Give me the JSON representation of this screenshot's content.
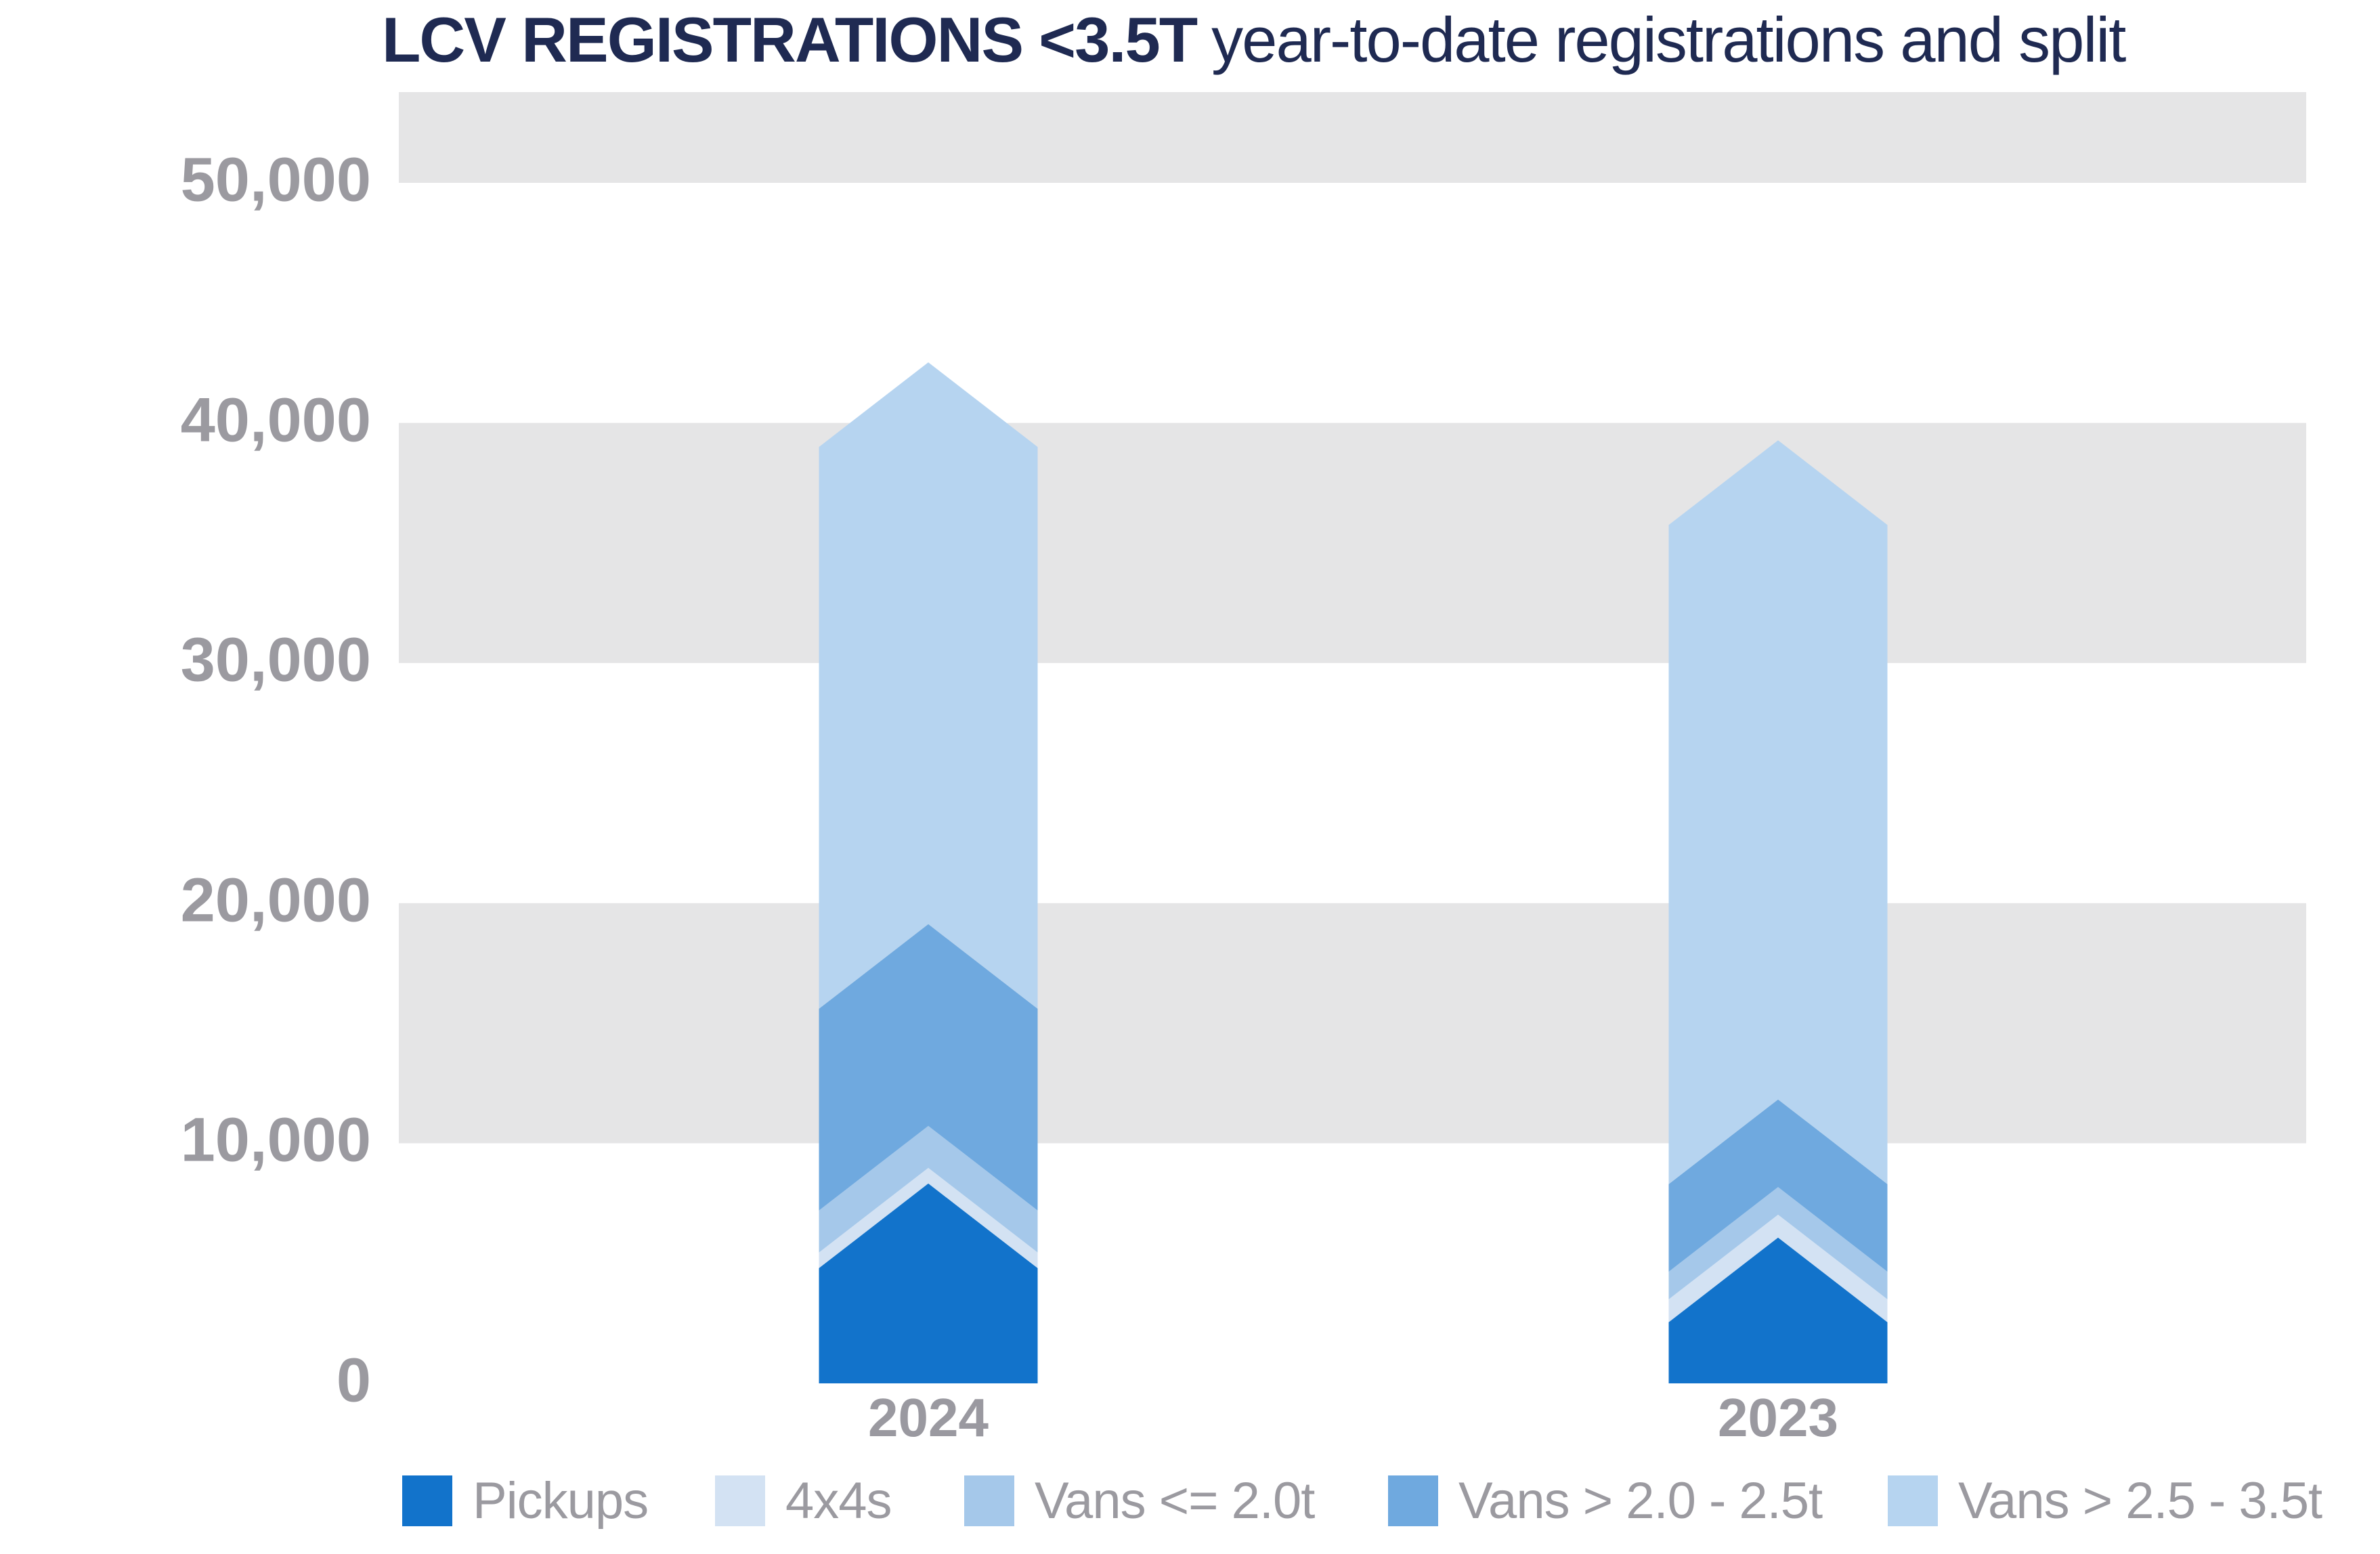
{
  "chart_data": {
    "type": "bar",
    "subtype": "stacked-column-chevron-arrows",
    "title_bold": "LCV REGISTRATIONS <3.5T",
    "title_regular": "year-to-date registrations and split",
    "categories": [
      "2024",
      "2023"
    ],
    "series": [
      {
        "name": "Pickups",
        "color": "#1273CB",
        "values": [
          4800,
          2550
        ]
      },
      {
        "name": "4x4s",
        "color": "#D3E2F3",
        "values": [
          650,
          950
        ]
      },
      {
        "name": "Vans <= 2.0t",
        "color": "#A5C8EA",
        "values": [
          1750,
          1150
        ]
      },
      {
        "name": "Vans > 2.0 - 2.5t",
        "color": "#6FA9DF",
        "values": [
          8400,
          3650
        ]
      },
      {
        "name": "Vans > 2.5 - 3.5t",
        "color": "#B6D4F0",
        "values": [
          23400,
          27450
        ]
      }
    ],
    "totals": [
      39000,
      35750
    ],
    "y_ticks": [
      50000,
      40000,
      30000,
      20000,
      10000,
      0
    ],
    "y_tick_labels": [
      "50,000",
      "40,000",
      "30,000",
      "20,000",
      "10,000",
      "0"
    ],
    "ylim": [
      0,
      53800
    ],
    "grid": "alternating horizontal gray bands every 10,000 (10k-20k, 30k-40k, 50k-top)",
    "legend_position": "bottom",
    "colors": {
      "band_gray": "#E5E5E6",
      "axis_text_gray": "#9B9AA0",
      "title_navy": "#1F2A52"
    }
  }
}
